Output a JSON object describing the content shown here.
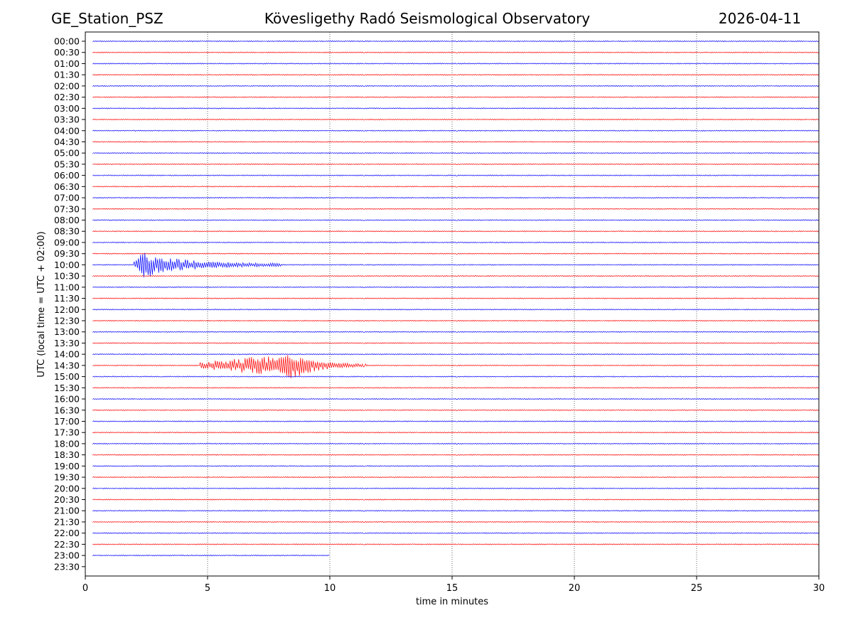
{
  "header": {
    "station": "GE_Station_PSZ",
    "observatory": "Kövesligethy Radó Seismological Observatory",
    "date": "2026-04-11"
  },
  "chart_data": {
    "type": "line",
    "title": "Kövesligethy Radó Seismological Observatory",
    "xlabel": "time in minutes",
    "ylabel": "UTC (local time = UTC + 02:00)",
    "xlim": [
      0,
      30
    ],
    "xticks": [
      "0",
      "5",
      "10",
      "15",
      "20",
      "25",
      "30"
    ],
    "grid": "vertical dotted at every 5 minutes",
    "row_labels": [
      "00:00",
      "00:30",
      "01:00",
      "01:30",
      "02:00",
      "02:30",
      "03:00",
      "03:30",
      "04:00",
      "04:30",
      "05:00",
      "05:30",
      "06:00",
      "06:30",
      "07:00",
      "07:30",
      "08:00",
      "08:30",
      "09:00",
      "09:30",
      "10:00",
      "10:30",
      "11:00",
      "11:30",
      "12:00",
      "12:30",
      "13:00",
      "13:30",
      "14:00",
      "14:30",
      "15:00",
      "15:30",
      "16:00",
      "16:30",
      "17:00",
      "17:30",
      "18:00",
      "18:30",
      "19:00",
      "19:30",
      "20:00",
      "20:30",
      "21:00",
      "21:30",
      "22:00",
      "22:30",
      "23:00",
      "23:30"
    ],
    "colors": {
      "even_rows": "#0000ff",
      "odd_rows": "#ff0000"
    },
    "trace_start_min": 0.3,
    "last_trace": {
      "row": "23:00",
      "end_min": 10.0
    },
    "events": [
      {
        "row": "10:00",
        "onset_min": 2.0,
        "peak_min": 2.25,
        "coda_end_min": 8.0,
        "color": "#0000ff"
      },
      {
        "row": "14:30",
        "onset_min": 4.7,
        "peak_min": 8.5,
        "coda_end_min": 11.5,
        "color": "#ff0000"
      }
    ]
  }
}
